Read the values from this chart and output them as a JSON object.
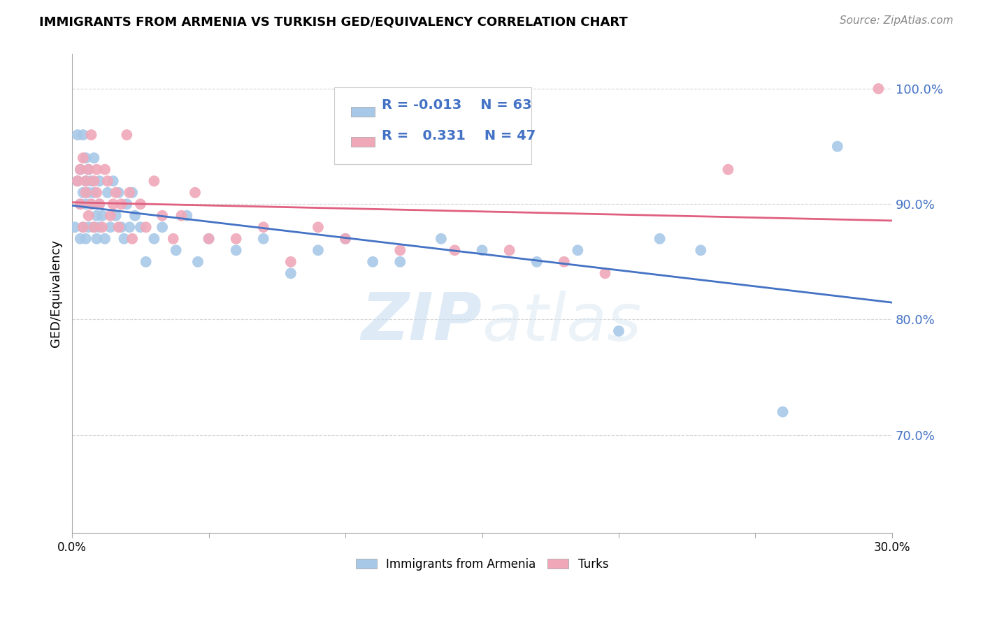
{
  "title": "IMMIGRANTS FROM ARMENIA VS TURKISH GED/EQUIVALENCY CORRELATION CHART",
  "source": "Source: ZipAtlas.com",
  "ylabel": "GED/Equivalency",
  "xlim": [
    0.0,
    0.3
  ],
  "ylim": [
    0.615,
    1.03
  ],
  "yticks": [
    0.7,
    0.8,
    0.9,
    1.0
  ],
  "ytick_labels": [
    "70.0%",
    "80.0%",
    "90.0%",
    "100.0%"
  ],
  "blue_R": "-0.013",
  "blue_N": "63",
  "pink_R": "0.331",
  "pink_N": "47",
  "blue_color": "#a8c8e8",
  "pink_color": "#f0a8b8",
  "blue_line_color": "#4472c4",
  "pink_line_color": "#e06080",
  "watermark_zip": "ZIP",
  "watermark_atlas": "atlas",
  "legend_blue_label": "Immigrants from Armenia",
  "legend_pink_label": "Turks",
  "blue_x": [
    0.001,
    0.002,
    0.002,
    0.003,
    0.003,
    0.003,
    0.004,
    0.004,
    0.004,
    0.005,
    0.005,
    0.005,
    0.005,
    0.006,
    0.006,
    0.006,
    0.007,
    0.007,
    0.008,
    0.008,
    0.008,
    0.009,
    0.009,
    0.01,
    0.01,
    0.01,
    0.011,
    0.012,
    0.013,
    0.014,
    0.015,
    0.016,
    0.017,
    0.018,
    0.019,
    0.02,
    0.021,
    0.022,
    0.023,
    0.025,
    0.027,
    0.03,
    0.033,
    0.038,
    0.042,
    0.046,
    0.05,
    0.06,
    0.07,
    0.08,
    0.09,
    0.1,
    0.11,
    0.12,
    0.135,
    0.15,
    0.17,
    0.185,
    0.2,
    0.215,
    0.23,
    0.26,
    0.28
  ],
  "blue_y": [
    0.88,
    0.92,
    0.96,
    0.9,
    0.93,
    0.87,
    0.91,
    0.96,
    0.88,
    0.92,
    0.9,
    0.94,
    0.87,
    0.91,
    0.93,
    0.88,
    0.9,
    0.92,
    0.88,
    0.91,
    0.94,
    0.89,
    0.87,
    0.9,
    0.92,
    0.88,
    0.89,
    0.87,
    0.91,
    0.88,
    0.92,
    0.89,
    0.91,
    0.88,
    0.87,
    0.9,
    0.88,
    0.91,
    0.89,
    0.88,
    0.85,
    0.87,
    0.88,
    0.86,
    0.89,
    0.85,
    0.87,
    0.86,
    0.87,
    0.84,
    0.86,
    0.87,
    0.85,
    0.85,
    0.87,
    0.86,
    0.85,
    0.86,
    0.79,
    0.87,
    0.86,
    0.72,
    0.95
  ],
  "pink_x": [
    0.002,
    0.003,
    0.003,
    0.004,
    0.004,
    0.005,
    0.005,
    0.006,
    0.006,
    0.007,
    0.007,
    0.008,
    0.008,
    0.009,
    0.009,
    0.01,
    0.011,
    0.012,
    0.013,
    0.014,
    0.015,
    0.016,
    0.017,
    0.018,
    0.02,
    0.021,
    0.022,
    0.025,
    0.027,
    0.03,
    0.033,
    0.037,
    0.04,
    0.045,
    0.05,
    0.06,
    0.07,
    0.08,
    0.09,
    0.1,
    0.12,
    0.14,
    0.16,
    0.18,
    0.195,
    0.24,
    0.295
  ],
  "pink_y": [
    0.92,
    0.9,
    0.93,
    0.88,
    0.94,
    0.92,
    0.91,
    0.89,
    0.93,
    0.9,
    0.96,
    0.92,
    0.88,
    0.91,
    0.93,
    0.9,
    0.88,
    0.93,
    0.92,
    0.89,
    0.9,
    0.91,
    0.88,
    0.9,
    0.96,
    0.91,
    0.87,
    0.9,
    0.88,
    0.92,
    0.89,
    0.87,
    0.89,
    0.91,
    0.87,
    0.87,
    0.88,
    0.85,
    0.88,
    0.87,
    0.86,
    0.86,
    0.86,
    0.85,
    0.84,
    0.93,
    1.0
  ],
  "background_color": "#ffffff",
  "grid_color": "#cccccc"
}
